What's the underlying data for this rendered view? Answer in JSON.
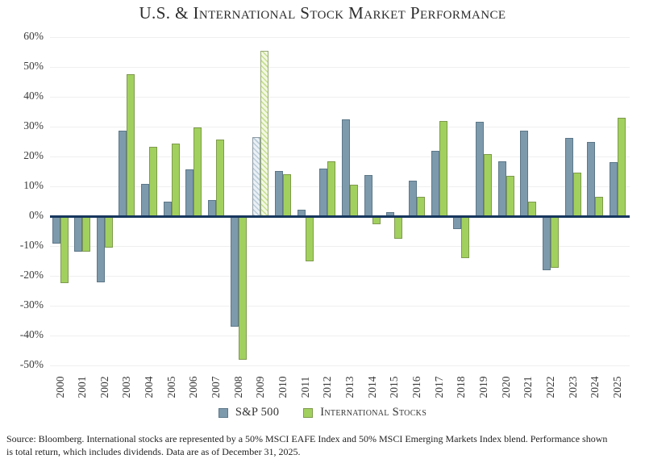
{
  "title": "U.S. & International Stock Market Performance",
  "footnote": {
    "line1": "Source: Bloomberg. International stocks are represented by a 50% MSCI EAFE Index and 50% MSCI Emerging Markets Index blend. Performance shown",
    "line2": "is total return, which includes dividends. Data are as of December 31, 2025."
  },
  "colors": {
    "zero_axis": "#17375E",
    "gridline": "#efefef",
    "text": "#3b3b3b"
  },
  "chart_data": {
    "type": "bar",
    "title": "U.S. & International Stock Market Performance",
    "categories": [
      "2000",
      "2001",
      "2002",
      "2003",
      "2004",
      "2005",
      "2006",
      "2007",
      "2008",
      "2009",
      "2010",
      "2011",
      "2012",
      "2013",
      "2014",
      "2015",
      "2016",
      "2017",
      "2018",
      "2019",
      "2020",
      "2021",
      "2022",
      "2023",
      "2024",
      "2025"
    ],
    "series": [
      {
        "name": "S&P 500",
        "color": "#7D9AAD",
        "border_color": "#5D7788",
        "hatch": {
          "base": "#eaf0f5",
          "stripe": "#b9cbd8",
          "border": "#8d9aa3"
        },
        "values": [
          -9.1,
          -11.9,
          -22.1,
          28.7,
          10.9,
          4.9,
          15.8,
          5.5,
          -37.0,
          26.5,
          15.1,
          2.1,
          16.0,
          32.4,
          13.7,
          1.4,
          12.0,
          21.8,
          -4.4,
          31.5,
          18.4,
          28.7,
          -18.1,
          26.3,
          25.0,
          18.0
        ]
      },
      {
        "name": "International Stocks",
        "color": "#A2D05E",
        "border_color": "#7E9A4D",
        "hatch": {
          "base": "#f2f8e2",
          "stripe": "#c6df8e",
          "border": "#97a878"
        },
        "values": [
          -22.4,
          -12.0,
          -10.5,
          47.5,
          23.3,
          24.3,
          29.8,
          25.7,
          -48.2,
          55.5,
          14.0,
          -15.0,
          18.4,
          10.6,
          -2.8,
          -7.5,
          6.6,
          31.9,
          -14.0,
          20.7,
          13.4,
          5.0,
          -17.3,
          14.7,
          6.4,
          33.0
        ]
      }
    ],
    "hatched_categories": [
      "2009"
    ],
    "yticks": [
      60,
      50,
      40,
      30,
      20,
      10,
      0,
      -10,
      -20,
      -30,
      -40,
      -50
    ],
    "ytick_labels": [
      "60%",
      "50%",
      "40%",
      "30%",
      "20%",
      "10%",
      "0%",
      "-10%",
      "-20%",
      "-30%",
      "-40%",
      "-50%"
    ],
    "ylim": [
      -50,
      60
    ],
    "grid": true,
    "legend_position": "bottom"
  }
}
